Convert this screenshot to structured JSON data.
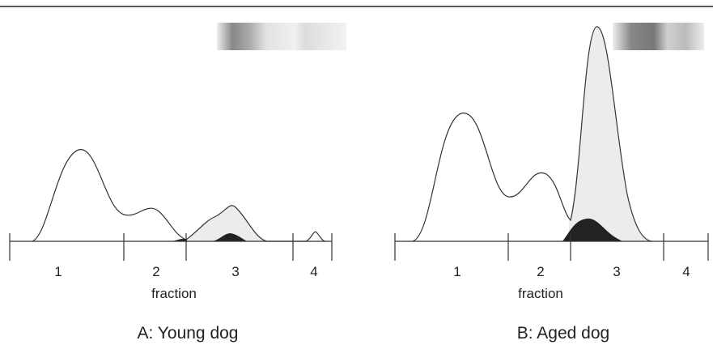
{
  "panels": [
    {
      "fraction_labels": [
        "1",
        "2",
        "3",
        "4"
      ],
      "axis_label": "fraction",
      "caption": "A: Young dog"
    },
    {
      "fraction_labels": [
        "1",
        "2",
        "3",
        "4"
      ],
      "axis_label": "fraction",
      "caption": "B: Aged dog"
    }
  ]
}
